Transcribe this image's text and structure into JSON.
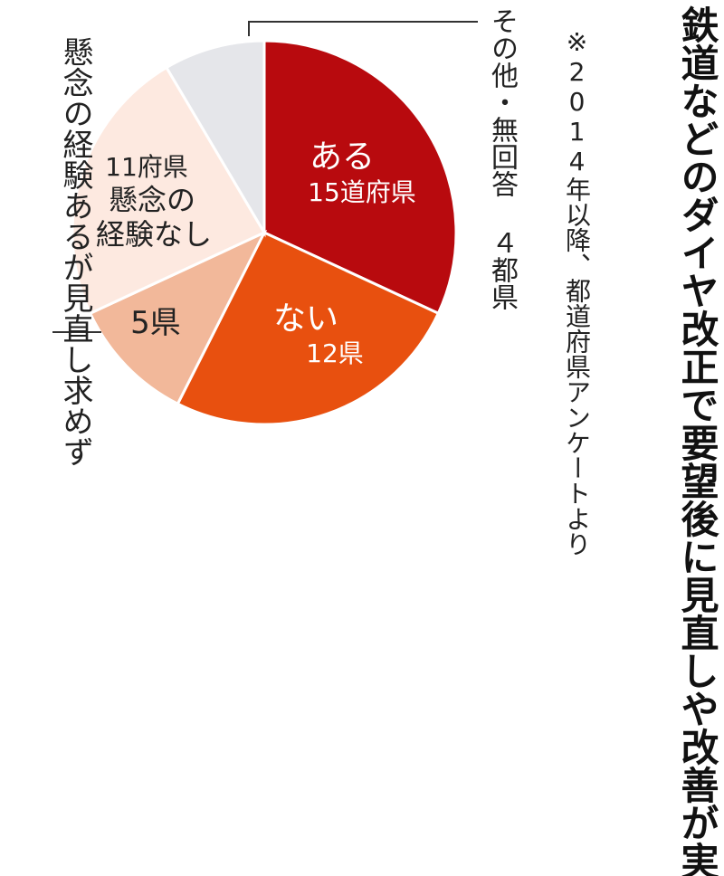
{
  "title": "鉄道などのダイヤ改正で要望後に見直しや改善が実現したことは",
  "note": "※2014年以降、都道府県アンケートより",
  "other_label": "その他・無回答 ４都県",
  "concern_label": "懸念の経験あるが見直し求めず",
  "colors": {
    "aru": "#b80a0e",
    "nai": "#e8500f",
    "concern_yes": "#f2b89a",
    "concern_no": "#fde9e0",
    "other": "#e5e6ea"
  },
  "chart_data": {
    "type": "pie",
    "start": "12 o'clock",
    "direction": "clockwise",
    "slices": [
      {
        "key": "aru",
        "label": "ある",
        "value_label": "15道府県",
        "value": 15
      },
      {
        "key": "nai",
        "label": "ない",
        "value_label": "12県",
        "value": 12
      },
      {
        "key": "concern_yes",
        "label": "",
        "value_label": "5県",
        "value": 5
      },
      {
        "key": "concern_no",
        "label": "懸念の経験なし",
        "value_label": "11府県",
        "value": 11
      },
      {
        "key": "other",
        "label": "",
        "value_label": "",
        "value": 4
      }
    ]
  }
}
